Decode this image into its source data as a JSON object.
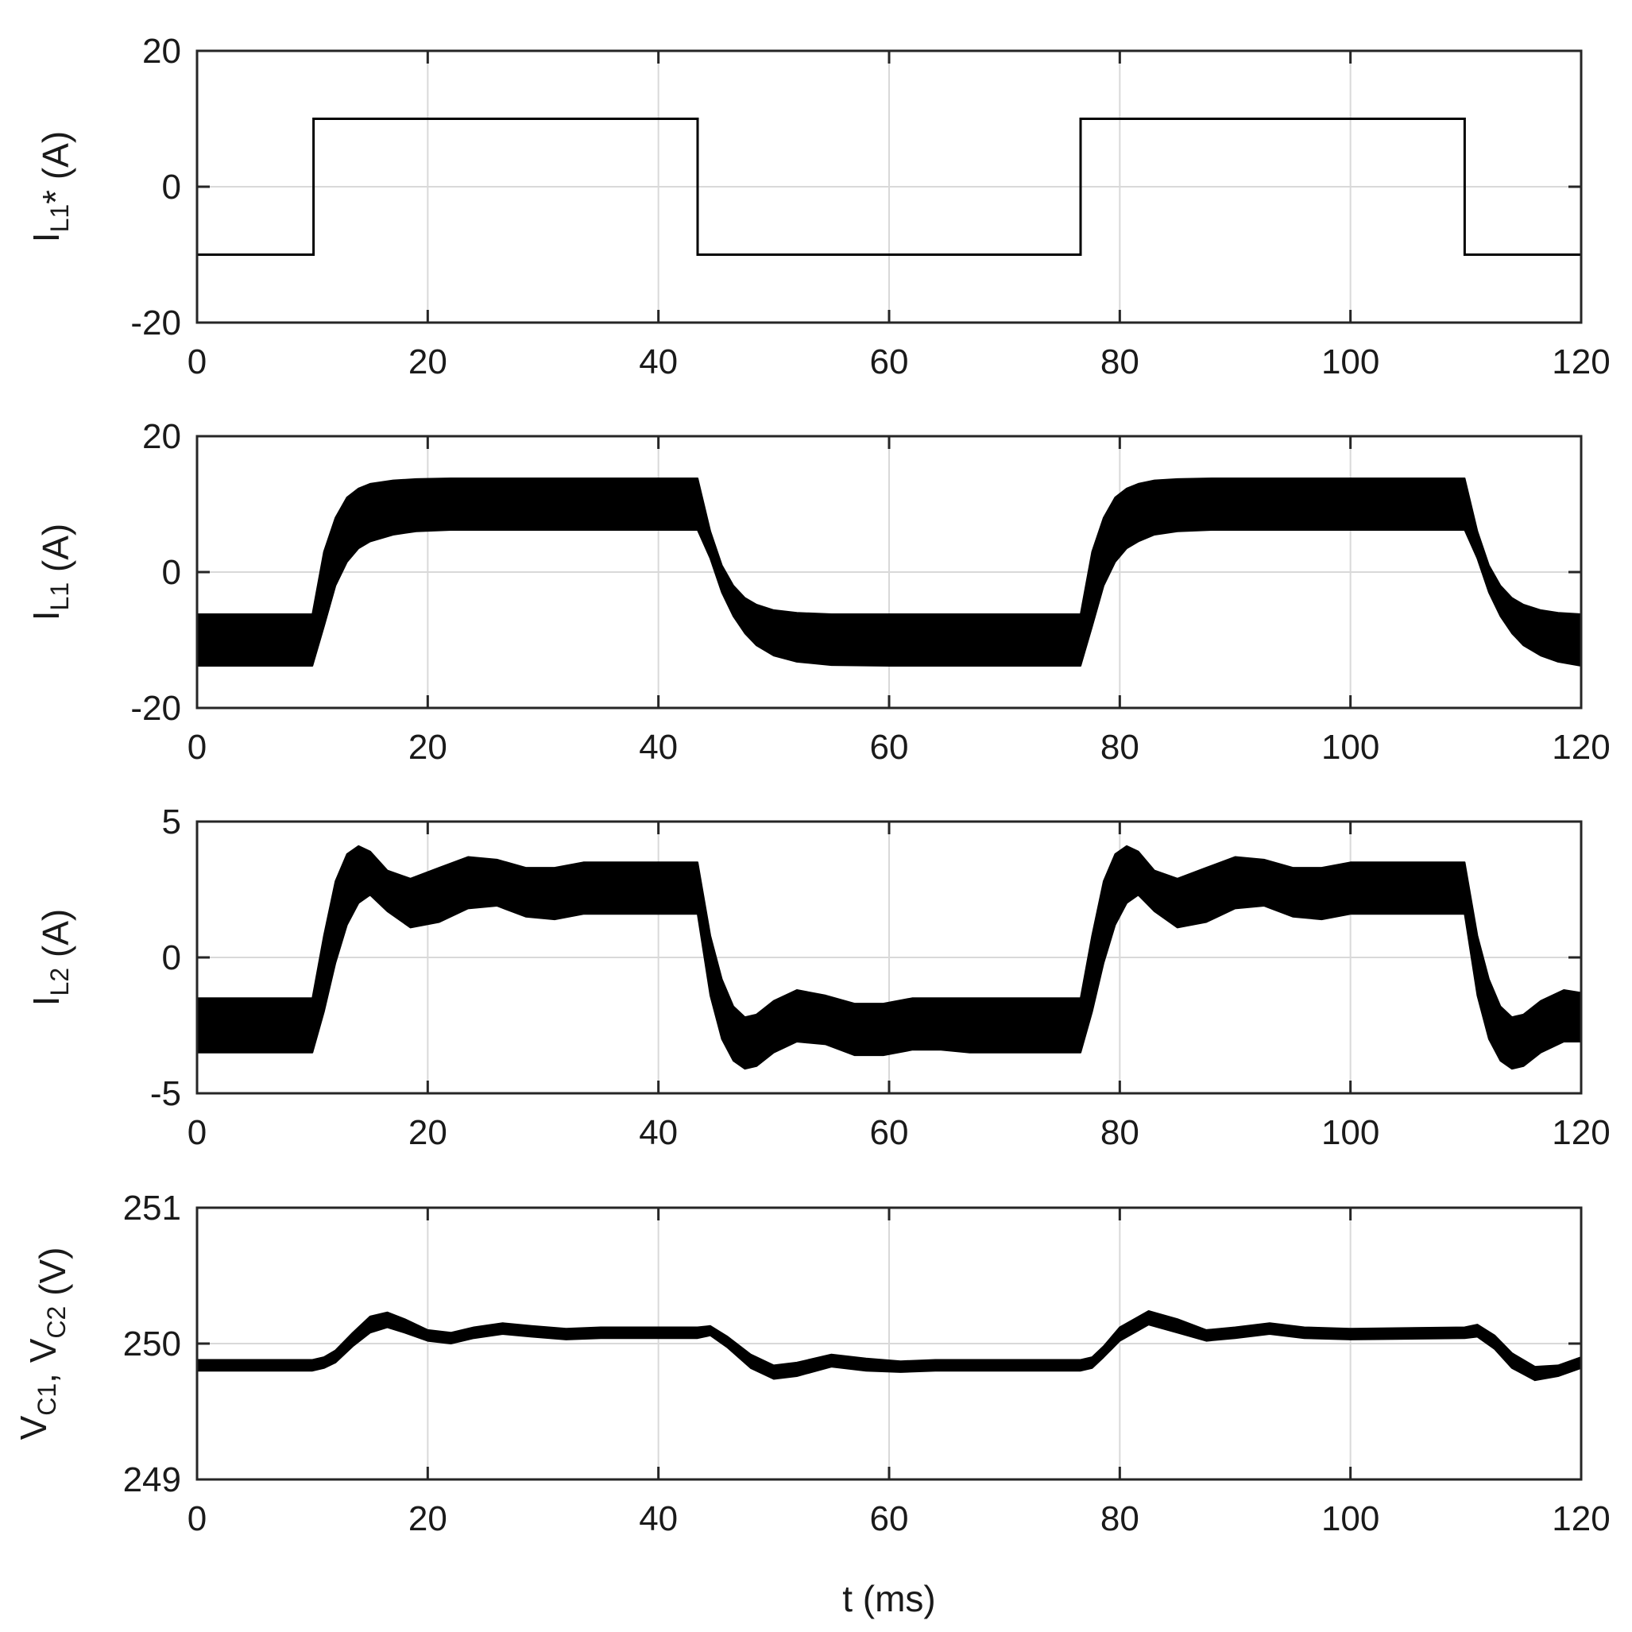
{
  "chart_data": [
    {
      "type": "line",
      "ylabel": {
        "base": "I",
        "sub": "L1",
        "suffix": "* (A)"
      },
      "xlim": [
        0,
        120
      ],
      "ylim": [
        -20,
        20
      ],
      "xticks": [
        0,
        20,
        40,
        60,
        80,
        100,
        120
      ],
      "yticks": [
        20,
        0,
        -20
      ],
      "grid": true,
      "series": [
        {
          "x": [
            0,
            10.1,
            10.1,
            43.4,
            43.4,
            76.6,
            76.6,
            109.9,
            109.9,
            120
          ],
          "y": [
            -10,
            -10,
            10,
            10,
            -10,
            -10,
            10,
            10,
            -10,
            -10
          ]
        }
      ]
    },
    {
      "type": "area",
      "ylabel": {
        "base": "I",
        "sub": "L1",
        "suffix": " (A)"
      },
      "xlim": [
        0,
        120
      ],
      "ylim": [
        -20,
        20
      ],
      "xticks": [
        0,
        20,
        40,
        60,
        80,
        100,
        120
      ],
      "yticks": [
        20,
        0,
        -20
      ],
      "grid": true,
      "series": [
        {
          "x": [
            0,
            10,
            11,
            12,
            13,
            14,
            15,
            17,
            19,
            22,
            26,
            30,
            43.4,
            44.5,
            45.5,
            46.5,
            47.5,
            48.5,
            50,
            52,
            55,
            60,
            76.6,
            77.6,
            78.6,
            79.6,
            80.6,
            81.6,
            83,
            85,
            88,
            93,
            109.9,
            111,
            112,
            113,
            114,
            115,
            116.5,
            118,
            120
          ],
          "upper": [
            -6.2,
            -6.2,
            3,
            8,
            11,
            12.3,
            13,
            13.5,
            13.7,
            13.8,
            13.8,
            13.8,
            13.8,
            6,
            1,
            -2,
            -3.8,
            -4.8,
            -5.6,
            -6,
            -6.2,
            -6.2,
            -6.2,
            3,
            8,
            11,
            12.3,
            13,
            13.5,
            13.7,
            13.8,
            13.8,
            13.8,
            6,
            1,
            -2,
            -3.8,
            -4.8,
            -5.6,
            -6,
            -6.2
          ],
          "lower": [
            -13.8,
            -13.8,
            -8,
            -2,
            1.5,
            3.5,
            4.5,
            5.5,
            6,
            6.2,
            6.2,
            6.2,
            6.2,
            2,
            -3,
            -6.5,
            -9,
            -10.8,
            -12.3,
            -13.2,
            -13.7,
            -13.8,
            -13.8,
            -8,
            -2,
            1.5,
            3.5,
            4.5,
            5.5,
            6,
            6.2,
            6.2,
            6.2,
            2,
            -3,
            -6.5,
            -9,
            -10.8,
            -12.3,
            -13.2,
            -13.8
          ]
        }
      ]
    },
    {
      "type": "area",
      "ylabel": {
        "base": "I",
        "sub": "L2",
        "suffix": " (A)"
      },
      "xlim": [
        0,
        120
      ],
      "ylim": [
        -5,
        5
      ],
      "xticks": [
        0,
        20,
        40,
        60,
        80,
        100,
        120
      ],
      "yticks": [
        5,
        0,
        -5
      ],
      "grid": true,
      "series": [
        {
          "x": [
            0,
            10,
            11,
            12,
            13,
            14,
            15,
            16.5,
            18.5,
            21,
            23.5,
            26,
            28.5,
            31,
            33.5,
            36,
            43.4,
            44.5,
            45.5,
            46.5,
            47.5,
            48.5,
            50,
            52,
            54.5,
            57,
            59.5,
            62,
            64.5,
            67,
            76.6,
            77.6,
            78.6,
            79.6,
            80.6,
            81.6,
            83,
            85,
            87.5,
            90,
            92.5,
            95,
            97.5,
            100,
            102.5,
            109.9,
            111,
            112,
            113,
            114,
            115,
            116.5,
            118.5,
            120
          ],
          "upper": [
            -1.5,
            -1.5,
            0.8,
            2.8,
            3.8,
            4.1,
            3.9,
            3.2,
            2.9,
            3.3,
            3.7,
            3.6,
            3.3,
            3.3,
            3.5,
            3.5,
            3.5,
            0.8,
            -0.8,
            -1.8,
            -2.2,
            -2.1,
            -1.6,
            -1.2,
            -1.4,
            -1.7,
            -1.7,
            -1.5,
            -1.5,
            -1.5,
            -1.5,
            0.8,
            2.8,
            3.8,
            4.1,
            3.9,
            3.2,
            2.9,
            3.3,
            3.7,
            3.6,
            3.3,
            3.3,
            3.5,
            3.5,
            3.5,
            0.8,
            -0.8,
            -1.8,
            -2.2,
            -2.1,
            -1.6,
            -1.2,
            -1.3
          ],
          "lower": [
            -3.5,
            -3.5,
            -2,
            -0.2,
            1.2,
            2,
            2.3,
            1.7,
            1.1,
            1.3,
            1.8,
            1.9,
            1.5,
            1.4,
            1.6,
            1.6,
            1.6,
            -1.4,
            -3,
            -3.8,
            -4.1,
            -4,
            -3.5,
            -3.1,
            -3.2,
            -3.6,
            -3.6,
            -3.4,
            -3.4,
            -3.5,
            -3.5,
            -2,
            -0.2,
            1.2,
            2,
            2.3,
            1.7,
            1.1,
            1.3,
            1.8,
            1.9,
            1.5,
            1.4,
            1.6,
            1.6,
            1.6,
            -1.4,
            -3,
            -3.8,
            -4.1,
            -4,
            -3.5,
            -3.1,
            -3.1
          ]
        }
      ]
    },
    {
      "type": "area",
      "ylabel": {
        "base1": "V",
        "sub1": "C1",
        "sep": ", ",
        "base2": "V",
        "sub2": "C2",
        "suffix": " (V)"
      },
      "xlabel": "t (ms)",
      "xlim": [
        0,
        120
      ],
      "ylim": [
        249,
        251
      ],
      "xticks": [
        0,
        20,
        40,
        60,
        80,
        100,
        120
      ],
      "yticks": [
        251,
        250,
        249
      ],
      "grid": true,
      "series": [
        {
          "x": [
            0,
            10,
            11,
            12,
            13.5,
            15,
            16.5,
            18,
            20,
            22,
            24,
            26.5,
            29,
            32,
            35,
            43.4,
            44.5,
            46,
            48,
            50,
            52,
            55,
            58,
            61,
            64,
            67,
            76.6,
            77.6,
            78.6,
            80,
            82.5,
            85,
            87.5,
            90,
            93,
            96,
            100,
            109.9,
            111,
            112.5,
            114,
            116,
            118,
            120
          ],
          "upper": [
            249.88,
            249.88,
            249.9,
            249.95,
            250.08,
            250.2,
            250.23,
            250.18,
            250.1,
            250.08,
            250.12,
            250.15,
            250.13,
            250.11,
            250.12,
            250.12,
            250.13,
            250.05,
            249.92,
            249.84,
            249.86,
            249.92,
            249.89,
            249.87,
            249.88,
            249.88,
            249.88,
            249.9,
            249.98,
            250.12,
            250.24,
            250.18,
            250.1,
            250.12,
            250.15,
            250.12,
            250.11,
            250.12,
            250.14,
            250.06,
            249.93,
            249.83,
            249.84,
            249.9
          ],
          "lower": [
            249.8,
            249.8,
            249.82,
            249.86,
            249.98,
            250.08,
            250.12,
            250.08,
            250.02,
            250,
            250.04,
            250.07,
            250.05,
            250.03,
            250.04,
            250.04,
            250.06,
            249.97,
            249.82,
            249.74,
            249.76,
            249.83,
            249.8,
            249.79,
            249.8,
            249.8,
            249.8,
            249.82,
            249.9,
            250.02,
            250.14,
            250.08,
            250.02,
            250.04,
            250.07,
            250.04,
            250.03,
            250.04,
            250.05,
            249.96,
            249.82,
            249.73,
            249.76,
            249.82
          ]
        }
      ]
    }
  ]
}
